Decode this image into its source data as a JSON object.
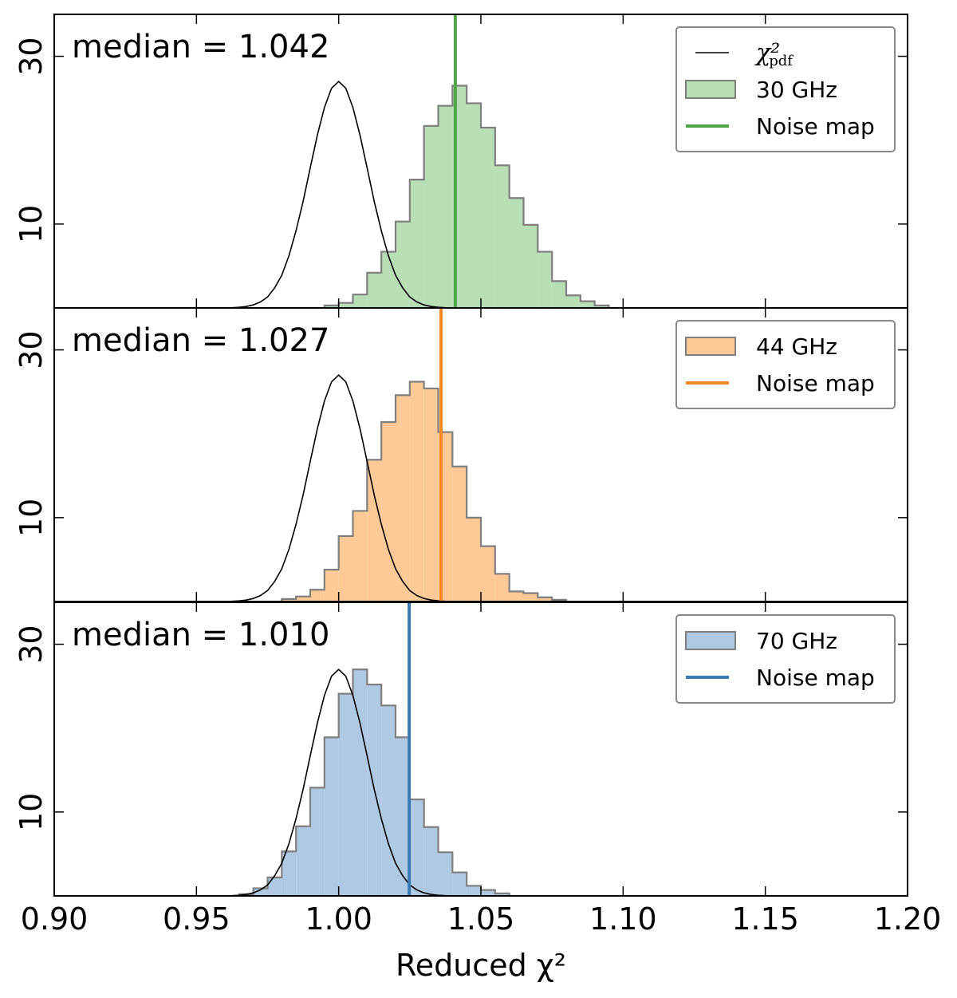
{
  "chart_data": [
    {
      "type": "histogram",
      "annotation": "median = 1.042",
      "bins": [
        0.995,
        1.0,
        1.005,
        1.01,
        1.015,
        1.02,
        1.025,
        1.03,
        1.035,
        1.04,
        1.045,
        1.05,
        1.055,
        1.06,
        1.065,
        1.07,
        1.075,
        1.08,
        1.085,
        1.09,
        1.095
      ],
      "values": [
        0.3,
        0.6,
        1.6,
        4.2,
        6.7,
        10.3,
        15.3,
        21.7,
        24.1,
        26.5,
        24.4,
        21.5,
        17.0,
        13.1,
        9.9,
        6.7,
        3.2,
        1.5,
        0.8,
        0.3
      ],
      "name": "30 GHz",
      "color": "#b8deb6",
      "edgecolor": "#7f7f7f",
      "vline": {
        "name": "Noise map",
        "color": "#4ea645",
        "value": 1.041
      },
      "curve": {
        "name": "χ²",
        "name_sub": "pdf",
        "color": "#000000",
        "x": [
          0.95,
          0.9525,
          0.955,
          0.9575,
          0.96,
          0.9625,
          0.965,
          0.9675,
          0.97,
          0.9725,
          0.975,
          0.9775,
          0.98,
          0.9825,
          0.985,
          0.9875,
          0.99,
          0.9925,
          0.995,
          0.9975,
          1.0,
          1.0025,
          1.005,
          1.0075,
          1.01,
          1.0125,
          1.015,
          1.0175,
          1.02,
          1.0225,
          1.025,
          1.0275,
          1.03,
          1.0325,
          1.035,
          1.0375,
          1.04,
          1.0425,
          1.045,
          1.0475,
          1.05
        ],
        "values": [
          0,
          0,
          0,
          0,
          0.01,
          0.03,
          0.08,
          0.17,
          0.36,
          0.71,
          1.3,
          2.4,
          3.9,
          6.2,
          9.2,
          12.7,
          16.7,
          20.6,
          23.9,
          26.2,
          27,
          26.2,
          23.9,
          20.6,
          16.7,
          12.7,
          9.2,
          6.2,
          3.9,
          2.4,
          1.3,
          0.71,
          0.36,
          0.17,
          0.08,
          0.03,
          0.01,
          0,
          0,
          0,
          0
        ]
      },
      "xlim": [
        0.9,
        1.2
      ],
      "ylim": [
        0,
        35
      ],
      "yticks": [
        10,
        30
      ],
      "xticks": [
        {
          "value": 0.9,
          "label": "0.90"
        },
        {
          "value": 0.95,
          "label": "0.95"
        },
        {
          "value": 1.0,
          "label": "1.00"
        },
        {
          "value": 1.05,
          "label": "1.05"
        },
        {
          "value": 1.1,
          "label": "1.10"
        },
        {
          "value": 1.15,
          "label": "1.15"
        },
        {
          "value": 1.2,
          "label": "1.20"
        }
      ],
      "legend": "upper right"
    },
    {
      "type": "histogram",
      "annotation": "median = 1.027",
      "bins": [
        0.98,
        0.985,
        0.99,
        0.995,
        1.0,
        1.005,
        1.01,
        1.015,
        1.02,
        1.025,
        1.03,
        1.035,
        1.04,
        1.045,
        1.05,
        1.055,
        1.06,
        1.065,
        1.07,
        1.075,
        1.08
      ],
      "values": [
        0.3,
        0.6,
        1.4,
        3.8,
        7.8,
        10.8,
        16.9,
        21.4,
        24.6,
        26.2,
        25.4,
        20.2,
        16.1,
        10.0,
        6.6,
        3.3,
        1.2,
        1.0,
        0.5,
        0.2
      ],
      "name": "44 GHz",
      "color": "#fdc997",
      "edgecolor": "#7f7f7f",
      "vline": {
        "name": "Noise map",
        "color": "#f5881f",
        "value": 1.036
      },
      "curve": {
        "color": "#000000",
        "x": [
          0.95,
          0.9525,
          0.955,
          0.9575,
          0.96,
          0.9625,
          0.965,
          0.9675,
          0.97,
          0.9725,
          0.975,
          0.9775,
          0.98,
          0.9825,
          0.985,
          0.9875,
          0.99,
          0.9925,
          0.995,
          0.9975,
          1.0,
          1.0025,
          1.005,
          1.0075,
          1.01,
          1.0125,
          1.015,
          1.0175,
          1.02,
          1.0225,
          1.025,
          1.0275,
          1.03,
          1.0325,
          1.035,
          1.0375,
          1.04,
          1.0425,
          1.045,
          1.0475,
          1.05
        ],
        "values": [
          0,
          0,
          0,
          0,
          0.01,
          0.03,
          0.08,
          0.17,
          0.36,
          0.71,
          1.3,
          2.4,
          3.9,
          6.2,
          9.2,
          12.7,
          16.7,
          20.6,
          23.9,
          26.2,
          27,
          26.2,
          23.9,
          20.6,
          16.7,
          12.7,
          9.2,
          6.2,
          3.9,
          2.4,
          1.3,
          0.71,
          0.36,
          0.17,
          0.08,
          0.03,
          0.01,
          0,
          0,
          0,
          0
        ]
      },
      "xlim": [
        0.9,
        1.2
      ],
      "ylim": [
        0,
        35
      ],
      "yticks": [
        10,
        30
      ],
      "xticks": [
        {
          "value": 0.9,
          "label": "0.90"
        },
        {
          "value": 0.95,
          "label": "0.95"
        },
        {
          "value": 1.0,
          "label": "1.00"
        },
        {
          "value": 1.05,
          "label": "1.05"
        },
        {
          "value": 1.1,
          "label": "1.10"
        },
        {
          "value": 1.15,
          "label": "1.15"
        },
        {
          "value": 1.2,
          "label": "1.20"
        }
      ],
      "legend": "upper right"
    },
    {
      "type": "histogram",
      "annotation": "median = 1.010",
      "bins": [
        0.965,
        0.97,
        0.975,
        0.98,
        0.985,
        0.99,
        0.995,
        1.0,
        1.005,
        1.01,
        1.015,
        1.02,
        1.025,
        1.03,
        1.035,
        1.04,
        1.045,
        1.05,
        1.055,
        1.06
      ],
      "values": [
        0.2,
        0.9,
        2.2,
        5.3,
        8.3,
        12.9,
        18.9,
        24.1,
        27.0,
        25.2,
        22.7,
        18.9,
        11.5,
        8.2,
        5.2,
        2.8,
        1.2,
        0.7,
        0.3
      ],
      "name": "70 GHz",
      "color": "#b0c9e2",
      "edgecolor": "#7f7f7f",
      "vline": {
        "name": "Noise map",
        "color": "#3a7ab3",
        "value": 1.0248
      },
      "curve": {
        "color": "#000000",
        "x": [
          0.95,
          0.9525,
          0.955,
          0.9575,
          0.96,
          0.9625,
          0.965,
          0.9675,
          0.97,
          0.9725,
          0.975,
          0.9775,
          0.98,
          0.9825,
          0.985,
          0.9875,
          0.99,
          0.9925,
          0.995,
          0.9975,
          1.0,
          1.0025,
          1.005,
          1.0075,
          1.01,
          1.0125,
          1.015,
          1.0175,
          1.02,
          1.0225,
          1.025,
          1.0275,
          1.03,
          1.0325,
          1.035,
          1.0375,
          1.04,
          1.0425,
          1.045,
          1.0475,
          1.05
        ],
        "values": [
          0,
          0,
          0,
          0,
          0.01,
          0.03,
          0.08,
          0.17,
          0.36,
          0.71,
          1.3,
          2.4,
          3.9,
          6.2,
          9.2,
          12.7,
          16.7,
          20.6,
          23.9,
          26.2,
          27,
          26.2,
          23.9,
          20.6,
          16.7,
          12.7,
          9.2,
          6.2,
          3.9,
          2.4,
          1.3,
          0.71,
          0.36,
          0.17,
          0.08,
          0.03,
          0.01,
          0,
          0,
          0,
          0
        ]
      },
      "xlim": [
        0.9,
        1.2
      ],
      "ylim": [
        0,
        35
      ],
      "yticks": [
        10,
        30
      ],
      "xticks": [
        {
          "value": 0.9,
          "label": "0.90"
        },
        {
          "value": 0.95,
          "label": "0.95"
        },
        {
          "value": 1.0,
          "label": "1.00"
        },
        {
          "value": 1.05,
          "label": "1.05"
        },
        {
          "value": 1.1,
          "label": "1.10"
        },
        {
          "value": 1.15,
          "label": "1.15"
        },
        {
          "value": 1.2,
          "label": "1.20"
        }
      ],
      "xlabel": "Reduced χ²",
      "legend": "upper right"
    }
  ]
}
